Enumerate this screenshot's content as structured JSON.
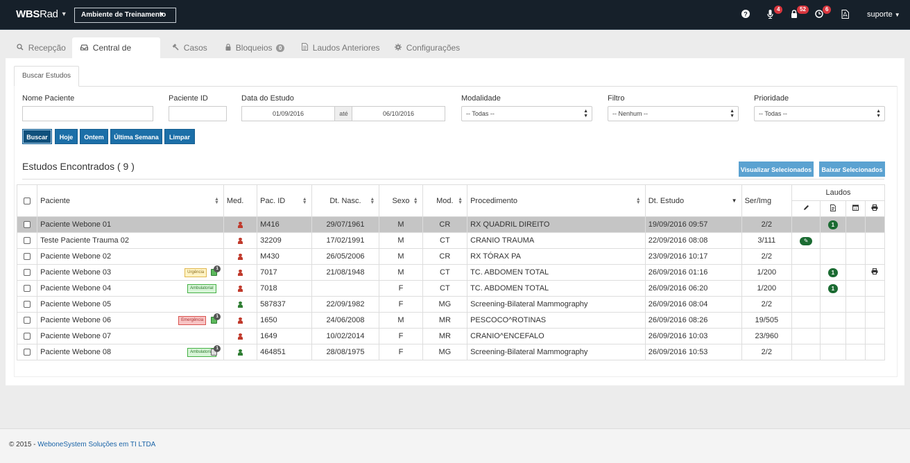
{
  "brand": {
    "title_prefix": "WBS",
    "title_suffix": "Rad"
  },
  "environment_select": {
    "value": "Ambiente de Treinamento"
  },
  "header": {
    "notifications": [
      {
        "icon": "microphone-icon",
        "count": "4"
      },
      {
        "icon": "lock-icon",
        "count": "52"
      },
      {
        "icon": "clock-icon",
        "count": "6"
      }
    ],
    "user": "suporte"
  },
  "main_tabs": [
    {
      "label": "Recepção",
      "icon": "search-icon",
      "active": false
    },
    {
      "label": "Central de Laudo",
      "icon": "inbox-icon",
      "active": true
    },
    {
      "label": "Casos",
      "icon": "gavel-icon",
      "active": false
    },
    {
      "label": "Bloqueios",
      "icon": "lock-icon",
      "active": false,
      "badge": "0"
    },
    {
      "label": "Laudos Anteriores",
      "icon": "document-icon",
      "active": false
    },
    {
      "label": "Configurações",
      "icon": "gear-icon",
      "active": false
    }
  ],
  "sub_tab": "Buscar Estudos",
  "filters": {
    "nome_paciente": {
      "label": "Nome Paciente",
      "value": ""
    },
    "paciente_id": {
      "label": "Paciente ID",
      "value": ""
    },
    "data_estudo": {
      "label": "Data do Estudo",
      "from": "01/09/2016",
      "separator": "até",
      "to": "06/10/2016"
    },
    "modalidade": {
      "label": "Modalidade",
      "value": "-- Todas --"
    },
    "filtro": {
      "label": "Filtro",
      "value": "-- Nenhum --"
    },
    "prioridade": {
      "label": "Prioridade",
      "value": "-- Todas --"
    }
  },
  "buttons": {
    "buscar": "Buscar",
    "hoje": "Hoje",
    "ontem": "Ontem",
    "ultima_semana": "Última Semana",
    "limpar": "Limpar",
    "visualizar": "Visualizar Selecionados",
    "baixar": "Baixar Selecionados"
  },
  "results": {
    "title": "Estudos Encontrados ( 9 )"
  },
  "table": {
    "columns": {
      "paciente": "Paciente",
      "med": "Med.",
      "pac_id": "Pac. ID",
      "dt_nasc": "Dt. Nasc.",
      "sexo": "Sexo",
      "mod": "Mod.",
      "procedimento": "Procedimento",
      "dt_estudo": "Dt. Estudo",
      "ser_img": "Ser/Img",
      "laudos": "Laudos"
    },
    "rows": [
      {
        "paciente": "Paciente Webone 01",
        "med_color": "red",
        "pac_id": "M416",
        "dt_nasc": "29/07/1961",
        "sexo": "M",
        "mod": "CR",
        "procedimento": "RX QUADRIL DIREITO",
        "dt_estudo": "19/09/2016 09:57",
        "ser_img": "2/2",
        "selected": true,
        "laudo_count": "1"
      },
      {
        "paciente": "Teste Paciente Trauma 02",
        "med_color": "red",
        "pac_id": "32209",
        "dt_nasc": "17/02/1991",
        "sexo": "M",
        "mod": "CT",
        "procedimento": "CRANIO TRAUMA",
        "dt_estudo": "22/09/2016 08:08",
        "ser_img": "3/111",
        "edit": true
      },
      {
        "paciente": "Paciente Webone 02",
        "med_color": "red",
        "pac_id": "M430",
        "dt_nasc": "26/05/2006",
        "sexo": "M",
        "mod": "CR",
        "procedimento": "RX TÓRAX PA",
        "dt_estudo": "23/09/2016 10:17",
        "ser_img": "2/2"
      },
      {
        "paciente": "Paciente Webone 03",
        "tag": "Urgência",
        "tag_type": "urg",
        "attach": "green",
        "attach_count": "1",
        "med_color": "red",
        "pac_id": "7017",
        "dt_nasc": "21/08/1948",
        "sexo": "M",
        "mod": "CT",
        "procedimento": "TC. ABDOMEN TOTAL",
        "dt_estudo": "26/09/2016 01:16",
        "ser_img": "1/200",
        "laudo_count": "1",
        "print": true
      },
      {
        "paciente": "Paciente Webone 04",
        "tag": "Ambulatorial",
        "tag_type": "amb",
        "med_color": "red",
        "pac_id": "7018",
        "dt_nasc": "",
        "sexo": "F",
        "mod": "CT",
        "procedimento": "TC. ABDOMEN TOTAL",
        "dt_estudo": "26/09/2016 06:20",
        "ser_img": "1/200",
        "laudo_count": "1"
      },
      {
        "paciente": "Paciente Webone 05",
        "med_color": "green",
        "pac_id": "587837",
        "dt_nasc": "22/09/1982",
        "sexo": "F",
        "mod": "MG",
        "procedimento": "Screening-Bilateral Mammography",
        "dt_estudo": "26/09/2016 08:04",
        "ser_img": "2/2"
      },
      {
        "paciente": "Paciente Webone 06",
        "tag": "Emergência",
        "tag_type": "emg",
        "attach": "green",
        "attach_count": "1",
        "med_color": "red",
        "pac_id": "1650",
        "dt_nasc": "24/06/2008",
        "sexo": "M",
        "mod": "MR",
        "procedimento": "PESCOCO^ROTINAS",
        "dt_estudo": "26/09/2016 08:26",
        "ser_img": "19/505"
      },
      {
        "paciente": "Paciente Webone 07",
        "med_color": "red",
        "pac_id": "1649",
        "dt_nasc": "10/02/2014",
        "sexo": "F",
        "mod": "MR",
        "procedimento": "CRANIO^ENCEFALO",
        "dt_estudo": "26/09/2016 10:03",
        "ser_img": "23/960"
      },
      {
        "paciente": "Paciente Webone 08",
        "tag": "Ambulatorial",
        "tag_type": "amb",
        "attach": "gray",
        "attach_count": "1",
        "med_color": "green",
        "pac_id": "464851",
        "dt_nasc": "28/08/1975",
        "sexo": "F",
        "mod": "MG",
        "procedimento": "Screening-Bilateral Mammography",
        "dt_estudo": "26/09/2016 10:53",
        "ser_img": "2/2"
      }
    ]
  },
  "footer": {
    "prefix": "© 2015 - ",
    "link": "WeboneSystem Soluções em TI LTDA"
  }
}
